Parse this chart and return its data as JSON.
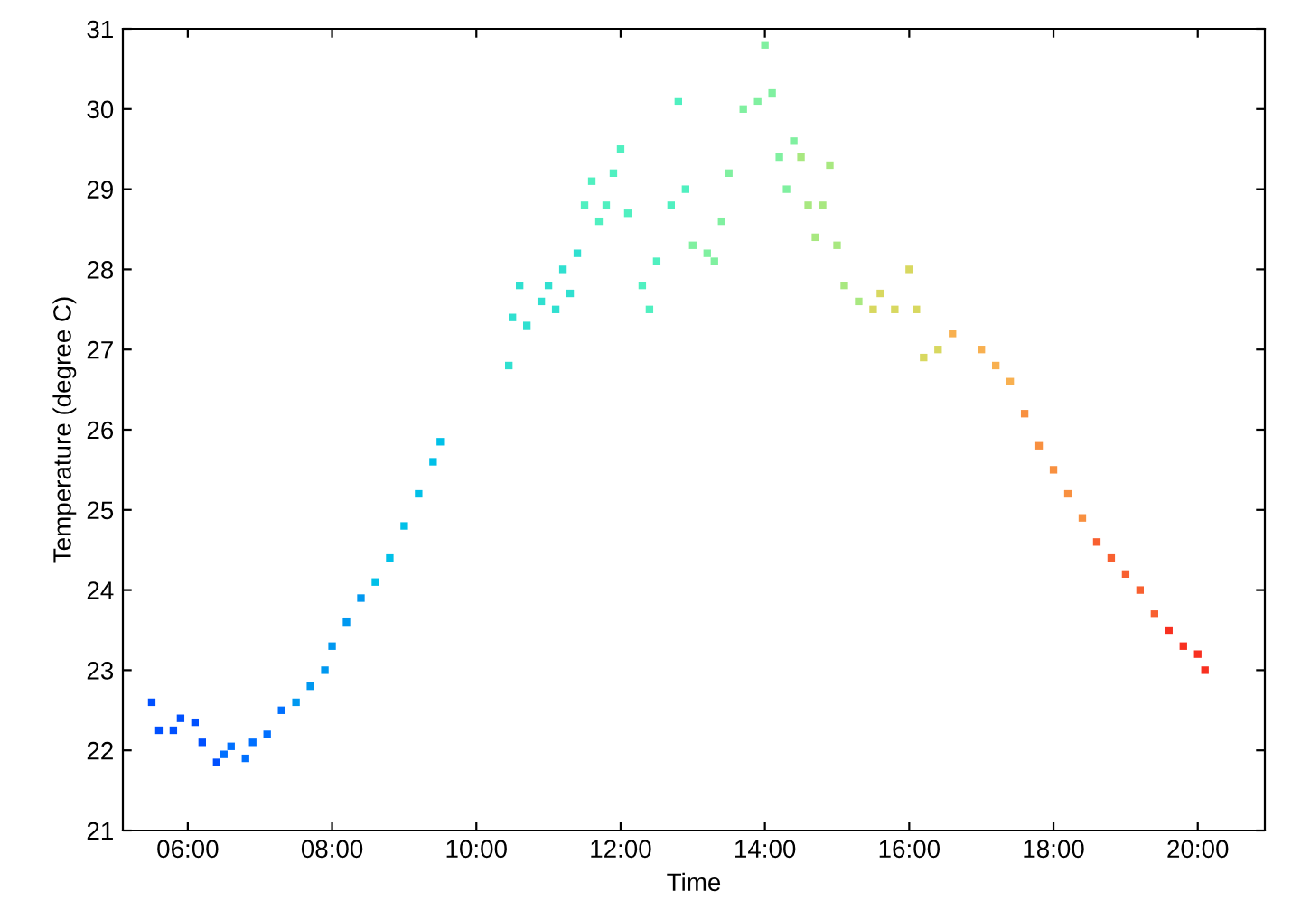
{
  "chart_data": {
    "type": "scatter",
    "xlabel": "Time",
    "ylabel": "Temperature (degree C)",
    "xlim": [
      5.1,
      20.93
    ],
    "ylim": [
      21,
      31
    ],
    "xticks": [
      {
        "value": 6,
        "label": "06:00"
      },
      {
        "value": 8,
        "label": "08:00"
      },
      {
        "value": 10,
        "label": "10:00"
      },
      {
        "value": 12,
        "label": "12:00"
      },
      {
        "value": 14,
        "label": "14:00"
      },
      {
        "value": 16,
        "label": "16:00"
      },
      {
        "value": 18,
        "label": "18:00"
      },
      {
        "value": 20,
        "label": "20:00"
      }
    ],
    "yticks": [
      21,
      22,
      23,
      24,
      25,
      26,
      27,
      28,
      29,
      30,
      31
    ],
    "grid": false,
    "marker": "square",
    "x": [
      5.5,
      5.6,
      5.8,
      5.9,
      6.1,
      6.2,
      6.4,
      6.5,
      6.6,
      6.8,
      6.9,
      7.1,
      7.3,
      7.5,
      7.7,
      7.9,
      8.0,
      8.2,
      8.4,
      8.6,
      8.8,
      9.0,
      9.2,
      9.4,
      9.5,
      10.45,
      10.5,
      10.6,
      10.7,
      10.9,
      11.0,
      11.1,
      11.2,
      11.3,
      11.4,
      11.5,
      11.6,
      11.7,
      11.8,
      11.9,
      12.0,
      12.1,
      12.3,
      12.4,
      12.5,
      12.7,
      12.8,
      12.9,
      13.0,
      13.2,
      13.3,
      13.4,
      13.5,
      13.7,
      13.9,
      14.0,
      14.1,
      14.2,
      14.3,
      14.4,
      14.5,
      14.6,
      14.7,
      14.8,
      14.9,
      15.0,
      15.1,
      15.3,
      15.5,
      15.6,
      15.8,
      16.0,
      16.1,
      16.2,
      16.4,
      16.6,
      17.0,
      17.2,
      17.4,
      17.6,
      17.8,
      18.0,
      18.2,
      18.4,
      18.6,
      18.8,
      19.0,
      19.2,
      19.4,
      19.6,
      19.8,
      20.0,
      20.1
    ],
    "values": [
      22.6,
      22.25,
      22.25,
      22.4,
      22.35,
      22.1,
      21.85,
      21.95,
      22.05,
      21.9,
      22.1,
      22.2,
      22.5,
      22.6,
      22.8,
      23.0,
      23.3,
      23.6,
      23.9,
      24.1,
      24.4,
      24.8,
      25.2,
      25.6,
      25.85,
      26.8,
      27.4,
      27.8,
      27.3,
      27.6,
      27.8,
      27.5,
      28.0,
      27.7,
      28.2,
      28.8,
      29.1,
      28.6,
      28.8,
      29.2,
      29.5,
      28.7,
      27.8,
      27.5,
      28.1,
      28.8,
      30.1,
      29.0,
      28.3,
      28.2,
      28.1,
      28.6,
      29.2,
      30.0,
      30.1,
      30.8,
      30.2,
      29.4,
      29.0,
      29.6,
      29.4,
      28.8,
      28.4,
      28.8,
      29.3,
      28.3,
      27.8,
      27.6,
      27.5,
      27.7,
      27.5,
      28.0,
      27.5,
      26.9,
      27.0,
      27.2,
      27.0,
      26.8,
      26.6,
      26.2,
      25.8,
      25.5,
      25.2,
      24.9,
      24.6,
      24.4,
      24.2,
      24.0,
      23.7,
      23.5,
      23.3,
      23.2,
      23.0
    ],
    "colors": [
      "#0050ff",
      "#0050ff",
      "#0050ff",
      "#0050ff",
      "#0050ff",
      "#0050ff",
      "#0050ff",
      "#0070ff",
      "#0070ff",
      "#0070ff",
      "#0070ff",
      "#0070ff",
      "#0070ff",
      "#0098f0",
      "#0098f0",
      "#0098f0",
      "#0098f0",
      "#0098f0",
      "#0098f0",
      "#00c0e8",
      "#00c0e8",
      "#00c0e8",
      "#00c0e8",
      "#00c0e8",
      "#00c0e8",
      "#30e0d0",
      "#30e0d0",
      "#30e0d0",
      "#30e0d0",
      "#30e0d0",
      "#30e0d0",
      "#30e0d0",
      "#30e0d0",
      "#30e0d0",
      "#30e0d0",
      "#50f0c0",
      "#50f0c0",
      "#50f0c0",
      "#50f0c0",
      "#50f0c0",
      "#50f0c0",
      "#50f0c0",
      "#50f0c0",
      "#50f0c0",
      "#50f0c0",
      "#50f0c0",
      "#50f0c0",
      "#50f0c0",
      "#80f0a0",
      "#80f0a0",
      "#80f0a0",
      "#80f0a0",
      "#80f0a0",
      "#80f0a0",
      "#80f0a0",
      "#80f0a0",
      "#80f0a0",
      "#80f0a0",
      "#80f0a0",
      "#80f0a0",
      "#a8e880",
      "#a8e880",
      "#a8e880",
      "#a8e880",
      "#a8e880",
      "#a8e880",
      "#a8e880",
      "#a8e880",
      "#d8d860",
      "#d8d860",
      "#d8d860",
      "#d8d860",
      "#d8d860",
      "#d8d860",
      "#d8d860",
      "#f8b050",
      "#f8b050",
      "#f8b050",
      "#f8b050",
      "#f89040",
      "#f89040",
      "#f89040",
      "#f89040",
      "#f89040",
      "#f86030",
      "#f86030",
      "#f86030",
      "#f86030",
      "#f86030",
      "#f83020",
      "#f83020",
      "#f83020",
      "#f83020"
    ]
  }
}
